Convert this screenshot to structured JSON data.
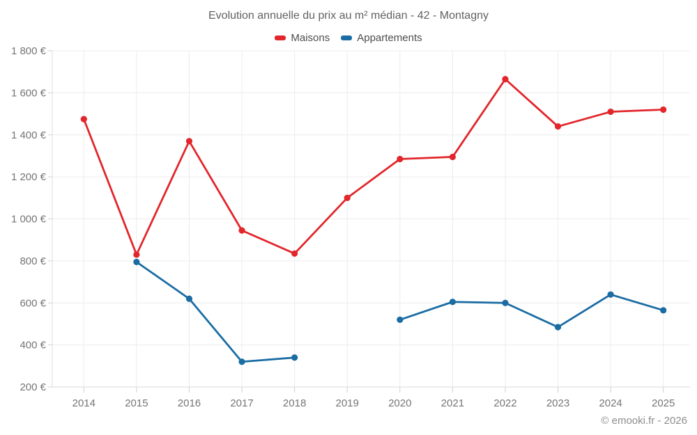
{
  "chart_data": {
    "type": "line",
    "title": "Evolution annuelle du prix au m² médian - 42 - Montagny",
    "categories": [
      "2014",
      "2015",
      "2016",
      "2017",
      "2018",
      "2019",
      "2020",
      "2021",
      "2022",
      "2023",
      "2024",
      "2025"
    ],
    "series": [
      {
        "name": "Maisons",
        "color": "#e2262b",
        "values": [
          1475,
          830,
          1370,
          945,
          835,
          1100,
          1285,
          1295,
          1665,
          1440,
          1510,
          1520
        ]
      },
      {
        "name": "Appartements",
        "color": "#1a6ca3",
        "values": [
          null,
          795,
          620,
          320,
          340,
          null,
          520,
          605,
          600,
          485,
          640,
          565
        ]
      }
    ],
    "ylabel": "",
    "xlabel": "",
    "y_unit": "€",
    "ylim": [
      200,
      1800
    ],
    "ytick_step": 200,
    "grid": true,
    "legend_position": "top",
    "footer": "© emooki.fr - 2026"
  }
}
